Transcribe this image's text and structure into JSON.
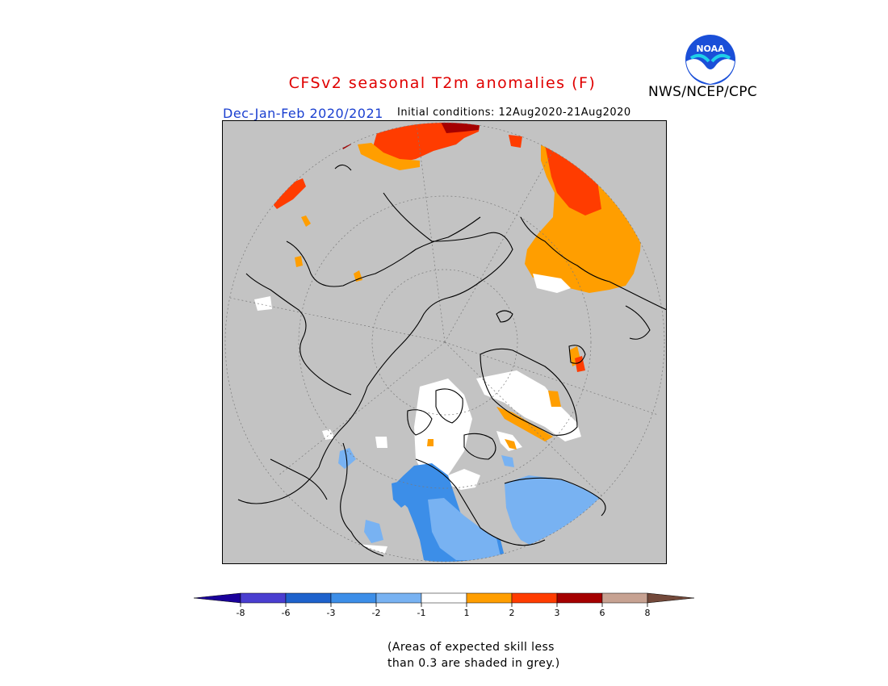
{
  "title": "CFSv2 seasonal T2m anomalies (F)",
  "season_label": "Dec-Jan-Feb 2020/2021",
  "initial_conditions": "Initial conditions: 12Aug2020-21Aug2020",
  "organization": "NWS/NCEP/CPC",
  "logo_text": "NOAA",
  "colors": {
    "grey_skill": "#c3c3c3",
    "neg8_less": "#1a009a",
    "neg8": "#4a3ed0",
    "neg6": "#1e62cc",
    "neg3": "#3c8ee8",
    "neg2": "#78b2f2",
    "neutral": "#ffffff",
    "pos1": "#ff9e00",
    "pos2": "#ff3c00",
    "pos3": "#a50000",
    "pos6": "#c7a292",
    "pos8_more": "#73493a"
  },
  "legend": {
    "ticks": [
      "-8",
      "-6",
      "-3",
      "-2",
      "-1",
      "1",
      "2",
      "3",
      "6",
      "8"
    ]
  },
  "note_line1": "(Areas of expected skill less",
  "note_line2": "than 0.3 are shaded in grey.)"
}
